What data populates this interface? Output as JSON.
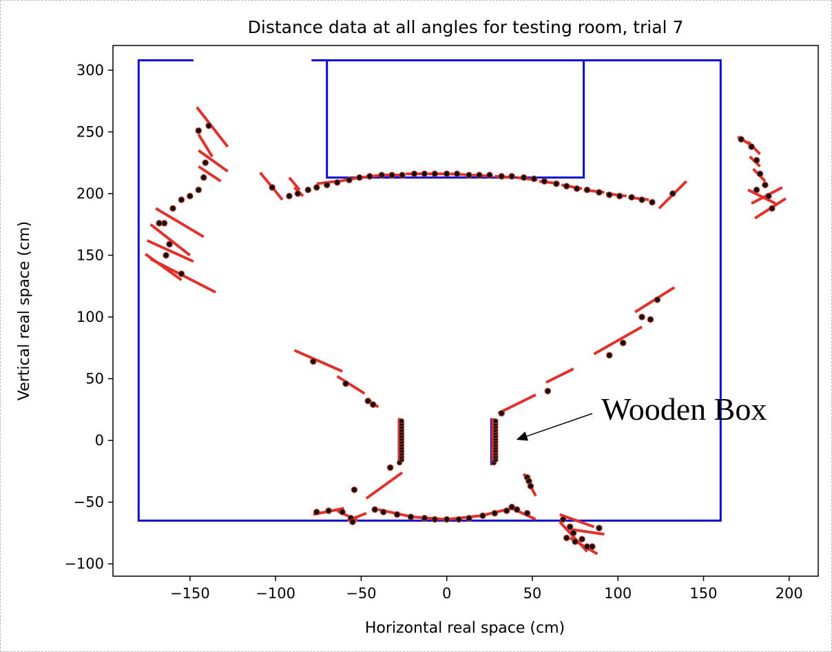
{
  "chart_data": {
    "type": "scatter",
    "title": "Distance data at all angles for testing room, trial 7",
    "xlabel": "Horizontal real space (cm)",
    "ylabel": "Vertical real space (cm)",
    "xlim": [
      -195,
      217
    ],
    "ylim": [
      -110,
      320
    ],
    "xticks": [
      -150,
      -100,
      -50,
      0,
      50,
      100,
      150,
      200
    ],
    "yticks": [
      -100,
      -50,
      0,
      50,
      100,
      150,
      200,
      250,
      300
    ],
    "xtick_labels": [
      "−150",
      "−100",
      "−50",
      "0",
      "50",
      "100",
      "150",
      "200"
    ],
    "ytick_labels": [
      "−100",
      "−50",
      "0",
      "50",
      "100",
      "150",
      "200",
      "250",
      "300"
    ],
    "grid": false,
    "colors": {
      "room": "#0b0bd6",
      "segments": "#e0312a",
      "points": "#111111",
      "points_edge": "#c0392b"
    },
    "room_outline": [
      {
        "x": [
          -148,
          -180,
          -180,
          160,
          160,
          -79
        ],
        "y": [
          308,
          308,
          -65,
          -65,
          308,
          308
        ]
      }
    ],
    "doorway_box": {
      "x": [
        -70,
        80
      ],
      "y": [
        213,
        308
      ]
    },
    "box_walls": [
      {
        "x": [
          -28,
          -28
        ],
        "y": [
          -20,
          18
        ]
      },
      {
        "x": [
          26,
          26
        ],
        "y": [
          -20,
          18
        ]
      }
    ],
    "points": [
      [
        -145,
        251
      ],
      [
        -139,
        255
      ],
      [
        -141,
        225
      ],
      [
        -142,
        213
      ],
      [
        -145,
        203
      ],
      [
        -150,
        198
      ],
      [
        -155,
        195
      ],
      [
        -160,
        188
      ],
      [
        -165,
        176
      ],
      [
        -168,
        176
      ],
      [
        -162,
        159
      ],
      [
        -164,
        150
      ],
      [
        -155,
        135
      ],
      [
        -102,
        205
      ],
      [
        -92,
        198
      ],
      [
        -87,
        200
      ],
      [
        -81,
        203
      ],
      [
        -76,
        205
      ],
      [
        -70,
        207
      ],
      [
        -64,
        209
      ],
      [
        -57,
        211
      ],
      [
        -51,
        213
      ],
      [
        -45,
        214
      ],
      [
        -38,
        215
      ],
      [
        -32,
        215
      ],
      [
        -26,
        215
      ],
      [
        -19,
        216
      ],
      [
        -13,
        216
      ],
      [
        -7,
        216
      ],
      [
        0,
        216
      ],
      [
        6,
        216
      ],
      [
        13,
        215
      ],
      [
        19,
        215
      ],
      [
        25,
        215
      ],
      [
        32,
        214
      ],
      [
        38,
        214
      ],
      [
        45,
        213
      ],
      [
        51,
        212
      ],
      [
        57,
        210
      ],
      [
        64,
        208
      ],
      [
        70,
        206
      ],
      [
        76,
        204
      ],
      [
        82,
        203
      ],
      [
        89,
        201
      ],
      [
        95,
        199
      ],
      [
        101,
        198
      ],
      [
        108,
        197
      ],
      [
        114,
        195
      ],
      [
        120,
        193
      ],
      [
        132,
        200
      ],
      [
        172,
        244
      ],
      [
        178,
        238
      ],
      [
        181,
        227
      ],
      [
        183,
        216
      ],
      [
        186,
        207
      ],
      [
        181,
        203
      ],
      [
        188,
        198
      ],
      [
        190,
        188
      ],
      [
        123,
        114
      ],
      [
        114,
        100
      ],
      [
        119,
        98
      ],
      [
        103,
        79
      ],
      [
        95,
        69
      ],
      [
        59,
        40
      ],
      [
        32,
        22
      ],
      [
        -78,
        64
      ],
      [
        -59,
        46
      ],
      [
        -46,
        32
      ],
      [
        -43,
        29
      ],
      [
        -33,
        -22
      ],
      [
        -54,
        -40
      ],
      [
        47,
        -30
      ],
      [
        48,
        -33
      ],
      [
        49,
        -37
      ],
      [
        -76,
        -58
      ],
      [
        -69,
        -57
      ],
      [
        -61,
        -58
      ],
      [
        -56,
        -63
      ],
      [
        -55,
        -66
      ],
      [
        -42,
        -56
      ],
      [
        -37,
        -58
      ],
      [
        -29,
        -60
      ],
      [
        -21,
        -62
      ],
      [
        -13,
        -63
      ],
      [
        -7,
        -64
      ],
      [
        0,
        -64
      ],
      [
        7,
        -64
      ],
      [
        13,
        -63
      ],
      [
        21,
        -61
      ],
      [
        28,
        -59
      ],
      [
        35,
        -57
      ],
      [
        38,
        -54
      ],
      [
        41,
        -56
      ],
      [
        47,
        -59
      ],
      [
        68,
        -64
      ],
      [
        72,
        -70
      ],
      [
        74,
        -75
      ],
      [
        70,
        -79
      ],
      [
        75,
        -82
      ],
      [
        79,
        -80
      ],
      [
        82,
        -86
      ],
      [
        85,
        -86
      ],
      [
        89,
        -71
      ]
    ],
    "segments": [
      [
        -146,
        270,
        -128,
        238
      ],
      [
        -145,
        248,
        -137,
        230
      ],
      [
        -145,
        235,
        -128,
        218
      ],
      [
        -145,
        222,
        -132,
        210
      ],
      [
        -170,
        188,
        -142,
        165
      ],
      [
        -173,
        175,
        -150,
        150
      ],
      [
        -175,
        162,
        -148,
        145
      ],
      [
        -176,
        151,
        -155,
        130
      ],
      [
        -173,
        147,
        -135,
        120
      ],
      [
        -109,
        217,
        -96,
        195
      ],
      [
        -92,
        213,
        -86,
        203
      ],
      [
        -89,
        205,
        -84,
        198
      ],
      [
        -76,
        208,
        -64,
        210
      ],
      [
        -63,
        210,
        -51,
        213
      ],
      [
        -50,
        213,
        -38,
        215
      ],
      [
        -37,
        215,
        -25,
        215
      ],
      [
        -24,
        216,
        -12,
        216
      ],
      [
        -11,
        216,
        1,
        216
      ],
      [
        2,
        216,
        14,
        215
      ],
      [
        15,
        215,
        27,
        214
      ],
      [
        28,
        214,
        40,
        213
      ],
      [
        41,
        213,
        53,
        211
      ],
      [
        54,
        210,
        66,
        208
      ],
      [
        67,
        207,
        79,
        204
      ],
      [
        80,
        203,
        92,
        201
      ],
      [
        93,
        200,
        105,
        198
      ],
      [
        106,
        197,
        118,
        195
      ],
      [
        119,
        194,
        121,
        192
      ],
      [
        124,
        188,
        140,
        210
      ],
      [
        170,
        246,
        177,
        240
      ],
      [
        176,
        242,
        183,
        232
      ],
      [
        177,
        230,
        183,
        222
      ],
      [
        179,
        220,
        186,
        210
      ],
      [
        176,
        203,
        192,
        192
      ],
      [
        178,
        192,
        196,
        205
      ],
      [
        180,
        180,
        198,
        196
      ],
      [
        110,
        104,
        133,
        124
      ],
      [
        86,
        70,
        114,
        92
      ],
      [
        58,
        47,
        74,
        58
      ],
      [
        30,
        22,
        52,
        37
      ],
      [
        -89,
        73,
        -61,
        56
      ],
      [
        -64,
        52,
        -48,
        38
      ],
      [
        -46,
        33,
        -40,
        27
      ],
      [
        -47,
        -47,
        -32,
        -32
      ],
      [
        -32,
        -32,
        -26,
        -26
      ],
      [
        45,
        -27,
        52,
        -45
      ],
      [
        -78,
        -60,
        -60,
        -55
      ],
      [
        -64,
        -57,
        -52,
        -65
      ],
      [
        -58,
        -65,
        -47,
        -59
      ],
      [
        -40,
        -56,
        -20,
        -62
      ],
      [
        -20,
        -62,
        0,
        -64
      ],
      [
        0,
        -64,
        20,
        -61
      ],
      [
        20,
        -61,
        38,
        -55
      ],
      [
        38,
        -55,
        52,
        -64
      ],
      [
        66,
        -60,
        86,
        -70
      ],
      [
        72,
        -72,
        92,
        -76
      ],
      [
        66,
        -66,
        82,
        -90
      ],
      [
        72,
        -79,
        88,
        -92
      ]
    ],
    "annotation": {
      "text": "Wooden Box",
      "xy": [
        39,
        0
      ],
      "xytext": [
        92,
        18
      ]
    }
  }
}
